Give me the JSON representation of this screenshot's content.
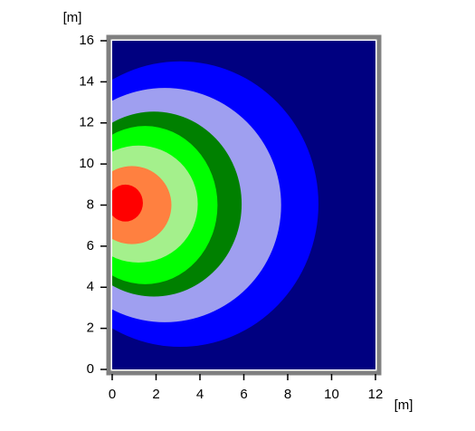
{
  "chart_data": {
    "type": "contour",
    "xlabel": "[m]",
    "ylabel": "[m]",
    "background": "#000080",
    "xlim": [
      0,
      12
    ],
    "xticks": [
      0,
      2,
      4,
      6,
      8,
      10,
      12
    ],
    "ylim": [
      0,
      16
    ],
    "yticks": [
      0,
      2,
      4,
      6,
      8,
      10,
      12,
      14,
      16
    ],
    "levels": [
      {
        "color": "#0000ff",
        "cx": 3.1,
        "cy": 8.05,
        "rx": 6.3,
        "ry": 6.95
      },
      {
        "color": "#9f9ff0",
        "cx": 2.4,
        "cy": 8.0,
        "rx": 5.3,
        "ry": 5.7
      },
      {
        "color": "#008000",
        "cx": 1.9,
        "cy": 8.05,
        "rx": 4.0,
        "ry": 4.5
      },
      {
        "color": "#00ff00",
        "cx": 1.5,
        "cy": 8.0,
        "rx": 3.3,
        "ry": 3.85
      },
      {
        "color": "#a4f08c",
        "cx": 1.2,
        "cy": 8.05,
        "rx": 2.7,
        "ry": 2.85
      },
      {
        "color": "#ff8040",
        "cx": 0.9,
        "cy": 8.0,
        "rx": 1.8,
        "ry": 1.9
      },
      {
        "color": "#ff0000",
        "cx": 0.6,
        "cy": 8.1,
        "rx": 0.8,
        "ry": 0.9
      }
    ]
  }
}
